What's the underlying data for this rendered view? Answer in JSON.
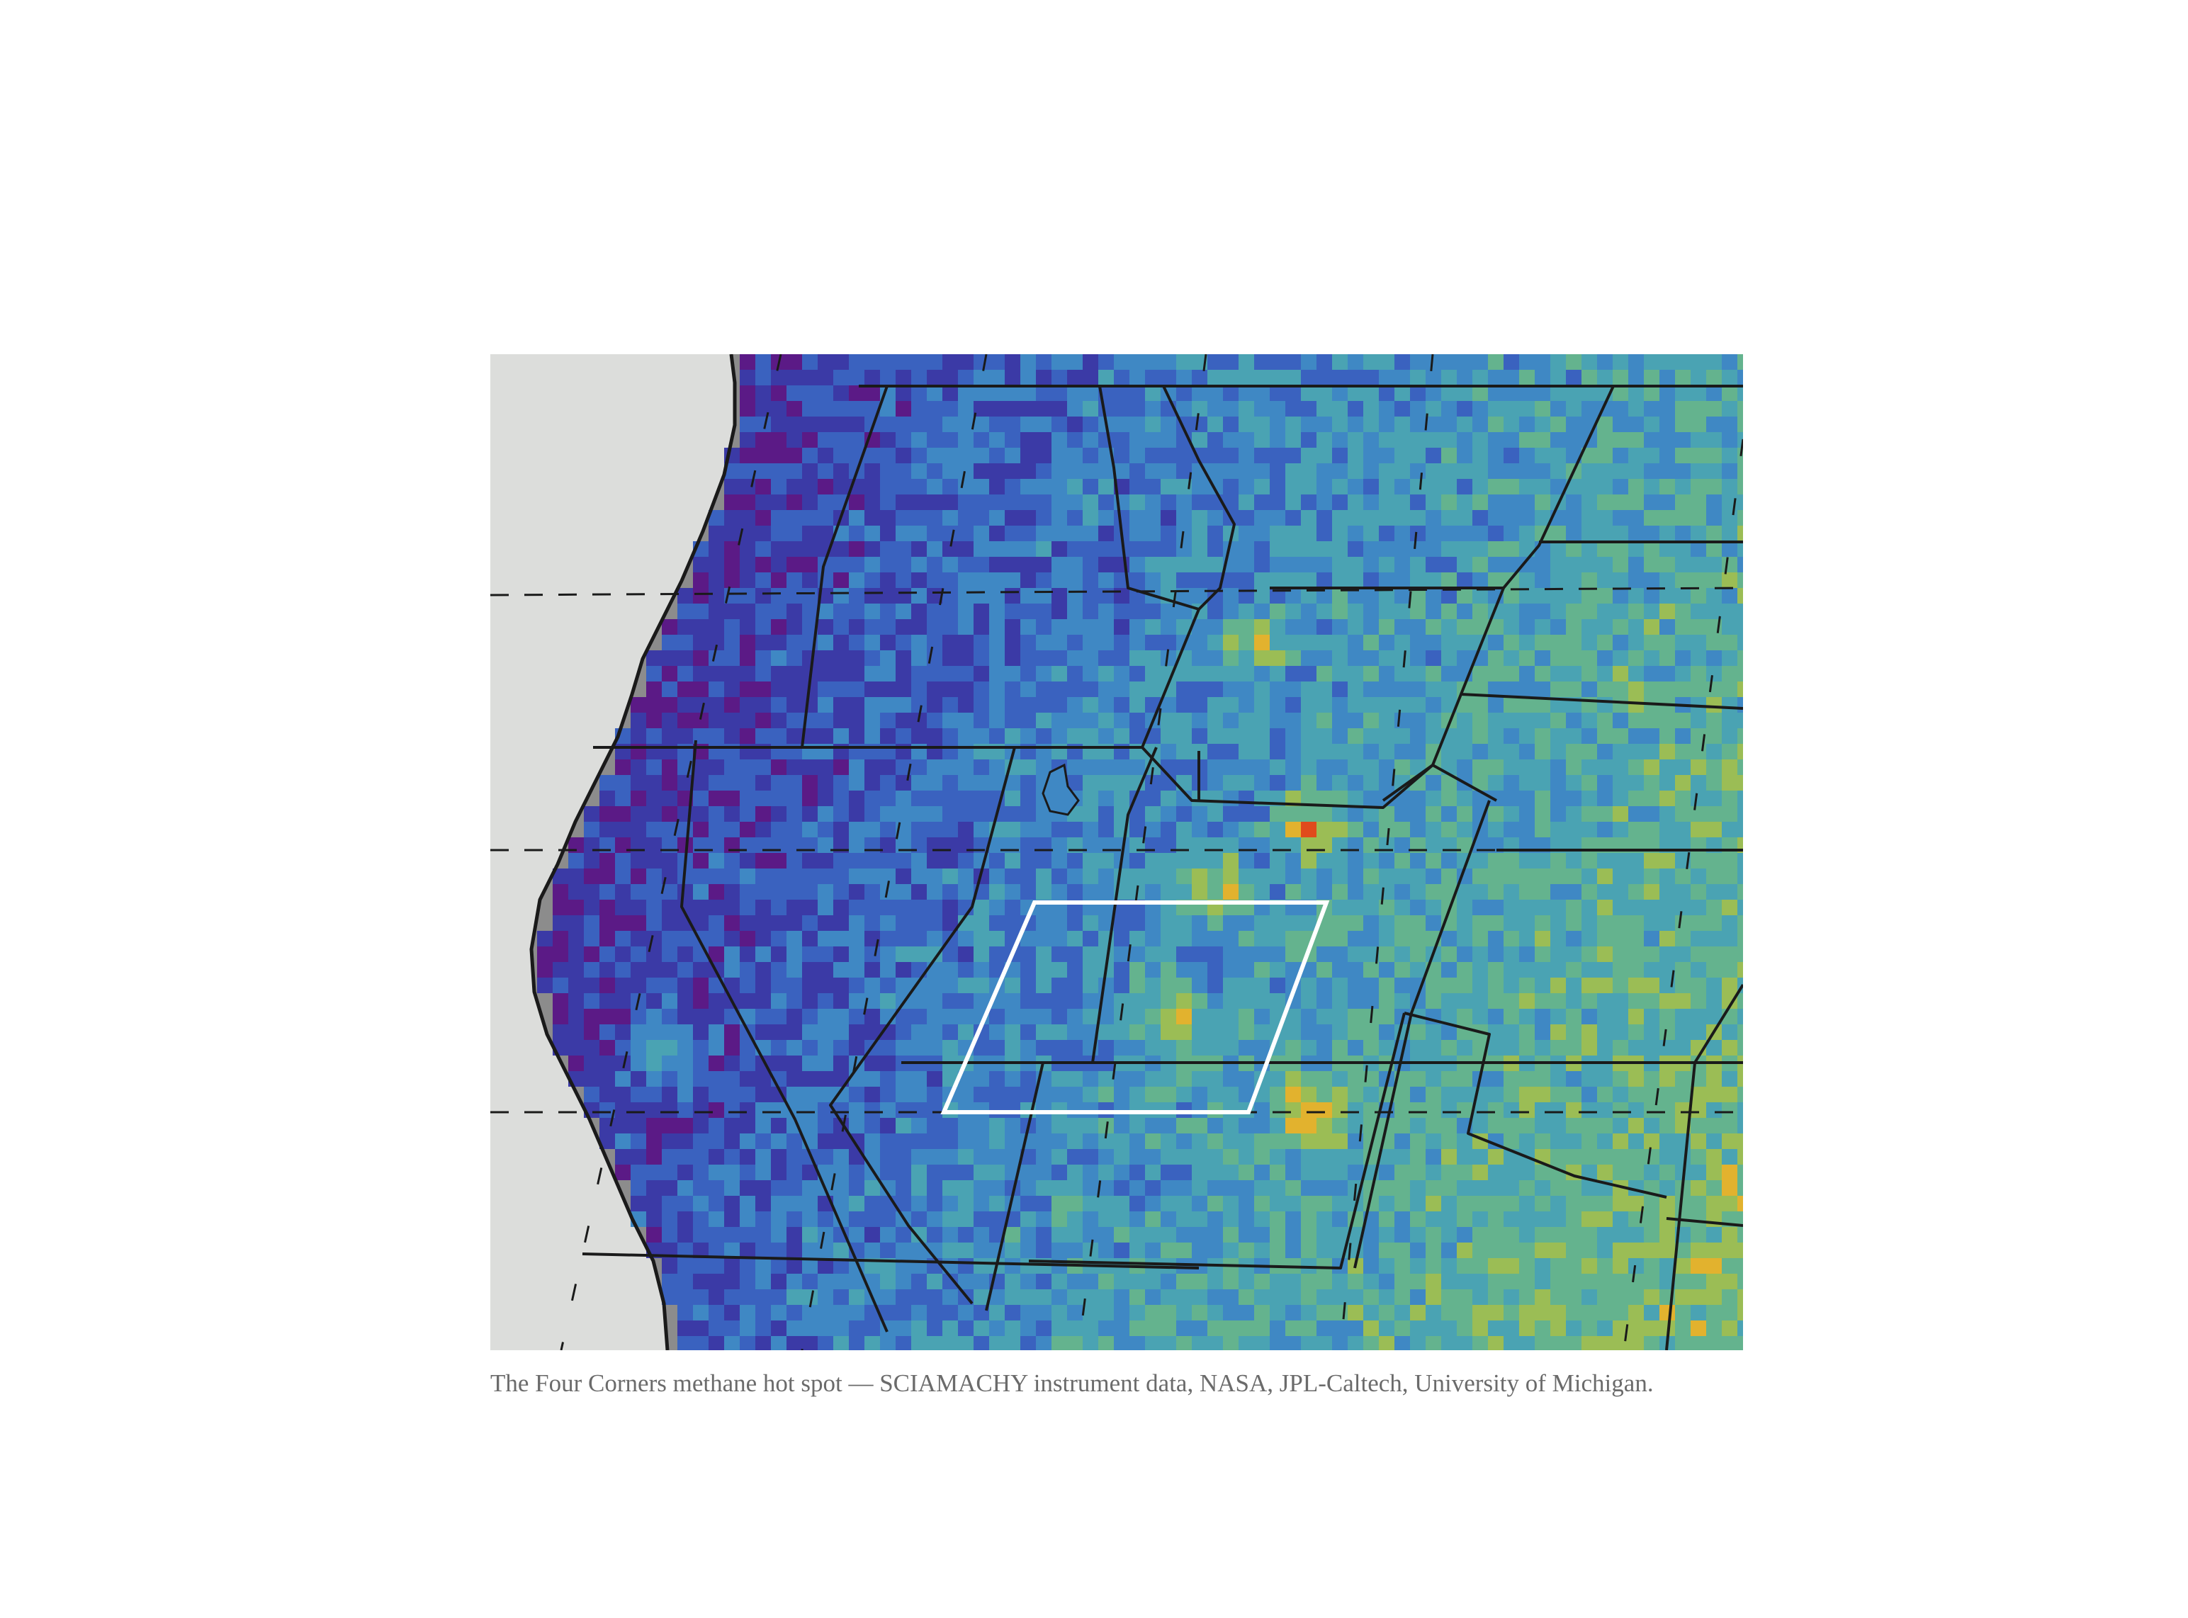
{
  "figure": {
    "caption": "The Four Corners methane hot spot — SCIAMACHY instrument data, NASA, JPL-Caltech, University of Michigan."
  },
  "map": {
    "ocean_color": "#dcdddb",
    "land_outside_data_color": "#8c8c8c",
    "border_color": "#1a1a1a",
    "highlight_box_color": "#ffffff",
    "hotspot_region": "Four Corners",
    "colormap": [
      "#5b1a86",
      "#3b3aa6",
      "#3a62bf",
      "#3f88c4",
      "#4aa3b3",
      "#64b38e",
      "#9bbd55",
      "#e2b22e",
      "#e04a1c"
    ]
  }
}
